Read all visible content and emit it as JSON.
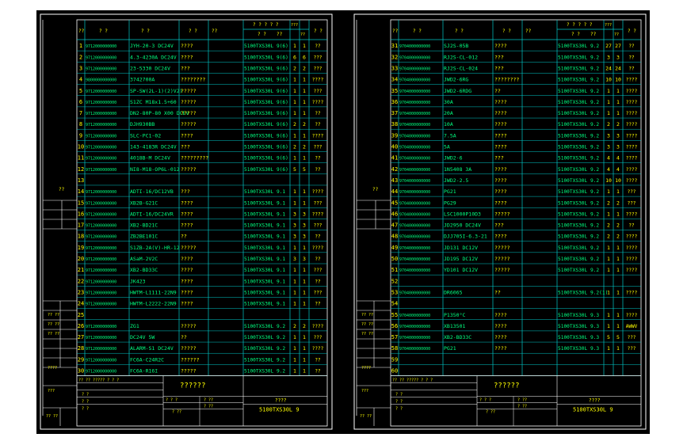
{
  "colors": {
    "frame": "#ffffff",
    "grid": "#00c8c8",
    "text": "#ffff00",
    "code": "#00ff80",
    "background": "#000000"
  },
  "sheets": [
    {
      "header": {
        "no": "??",
        "code": "? ?",
        "name": "? ?",
        "c3": "? ?",
        "c4": "??",
        "ref_top": "? ? ? ? ?",
        "ref_sub": "? ?",
        "ref_sub2": "??",
        "q1": "???",
        "q2": "??",
        "rem": "? ?"
      },
      "rows": [
        {
          "no": "1",
          "code": "9712000000000",
          "name": "JYH-20-3 DC24V",
          "c3": "????",
          "ref": "5100TXS30L 9(6)",
          "q1": "1",
          "q2": "1",
          "rem": "??"
        },
        {
          "no": "2",
          "code": "9712000000000",
          "name": "4.3-4230A DC24V",
          "c3": "????",
          "ref": "5100TXS30L 9(6)",
          "q1": "6",
          "q2": "6",
          "rem": "???"
        },
        {
          "no": "3",
          "code": "9712000000000",
          "name": "23-5330 DC24V",
          "c3": "???",
          "ref": "5100TXS30L 9(6)",
          "q1": "2",
          "q2": "2",
          "rem": "???"
        },
        {
          "no": "4",
          "code": "9800000000000",
          "name": "3742700A",
          "c3": "????????",
          "ref": "5100TXS30L 9(6)",
          "q1": "1",
          "q2": "1",
          "rem": "????"
        },
        {
          "no": "5",
          "code": "9712000000000",
          "name": "SP-SW(2L-1)(2)V2)",
          "c3": "?????",
          "ref": "5100TXS30L 9(6)",
          "q1": "1",
          "q2": "1",
          "rem": "???"
        },
        {
          "no": "6",
          "code": "9712000000000",
          "name": "S1ZC M18x1.5+60",
          "c3": "?????",
          "ref": "5100TXS30L 9(6)",
          "q1": "1",
          "q2": "1",
          "rem": "????"
        },
        {
          "no": "7",
          "code": "9712000000000",
          "name": "DN2-80P-80 X00 DCEV",
          "c3": "?????",
          "ref": "5100TXS30L 9(6)",
          "q1": "1",
          "q2": "1",
          "rem": "??"
        },
        {
          "no": "8",
          "code": "9712000000000",
          "name": "DJH930BB",
          "c3": "?????",
          "ref": "5100TXS30L 9(6)",
          "q1": "2",
          "q2": "2",
          "rem": "??"
        },
        {
          "no": "9",
          "code": "9712000000000",
          "name": "SLC-PC1-02",
          "c3": "????",
          "ref": "5100TXS30L 9(6)",
          "q1": "1",
          "q2": "1",
          "rem": "????"
        },
        {
          "no": "10",
          "code": "9712000000000",
          "name": "143-4183R DC24V",
          "c3": "???",
          "ref": "5100TXS30L 9(6)",
          "q1": "2",
          "q2": "2",
          "rem": "???"
        },
        {
          "no": "11",
          "code": "9712000000000",
          "name": "4018B-M DC24V",
          "c3": "?????????",
          "ref": "5100TXS30L 9(6)",
          "q1": "1",
          "q2": "1",
          "rem": "??"
        },
        {
          "no": "12",
          "code": "9712000000000",
          "name": "NI8-M18-OP6L-012",
          "c3": "?????",
          "ref": "5100TXS30L 9(6)",
          "q1": "5",
          "q2": "5",
          "rem": "??"
        },
        {
          "no": "13",
          "code": "",
          "name": "",
          "c3": "",
          "ref": "",
          "q1": "",
          "q2": "",
          "rem": ""
        },
        {
          "no": "14",
          "code": "9712000000000",
          "name": "ADTI-16/DC12VB",
          "c3": "???",
          "ref": "5100TXS30L 9.1",
          "q1": "1",
          "q2": "1",
          "rem": "????"
        },
        {
          "no": "15",
          "code": "9712000000000",
          "name": "XB2B-G21C",
          "c3": "????",
          "ref": "5100TXS30L 9.1",
          "q1": "1",
          "q2": "1",
          "rem": "???"
        },
        {
          "no": "16",
          "code": "9712000000000",
          "name": "ADTI-16/DC24VR",
          "c3": "????",
          "ref": "5100TXS30L 9.1",
          "q1": "3",
          "q2": "3",
          "rem": "????"
        },
        {
          "no": "17",
          "code": "9712000000000",
          "name": "XB2-BD21C",
          "c3": "????",
          "ref": "5100TXS30L 9.1",
          "q1": "3",
          "q2": "3",
          "rem": "???"
        },
        {
          "no": "18",
          "code": "9712000000000",
          "name": "ZB2BE101C",
          "c3": "??",
          "ref": "5100TXS30L 9.1",
          "q1": "3",
          "q2": "3",
          "rem": "??"
        },
        {
          "no": "19",
          "code": "9712000000000",
          "name": "S1ZB-2A(V)-HR-12",
          "c3": "?????",
          "ref": "5100TXS30L 9.1",
          "q1": "1",
          "q2": "1",
          "rem": "????"
        },
        {
          "no": "20",
          "code": "9712000000000",
          "name": "ASaM-2V2C",
          "c3": "????",
          "ref": "5100TXS30L 9.1",
          "q1": "3",
          "q2": "3",
          "rem": "??"
        },
        {
          "no": "21",
          "code": "9712000000000",
          "name": "XB2-BD33C",
          "c3": "????",
          "ref": "5100TXS30L 9.1",
          "q1": "1",
          "q2": "1",
          "rem": "???"
        },
        {
          "no": "22",
          "code": "9712000000000",
          "name": "JK423",
          "c3": "????",
          "ref": "5100TXS30L 9.1",
          "q1": "1",
          "q2": "1",
          "rem": "??"
        },
        {
          "no": "23",
          "code": "9712000000000",
          "name": "HWTM-L1111-22N9",
          "c3": "????",
          "ref": "5100TXS30L 9.1",
          "q1": "1",
          "q2": "1",
          "rem": "???"
        },
        {
          "no": "24",
          "code": "9712000000000",
          "name": "HWTM-L2222-22N9",
          "c3": "????",
          "ref": "5100TXS30L 9.1",
          "q1": "1",
          "q2": "1",
          "rem": "??"
        },
        {
          "no": "25",
          "code": "",
          "name": "",
          "c3": "",
          "ref": "",
          "q1": "",
          "q2": "",
          "rem": ""
        },
        {
          "no": "26",
          "code": "9712000000000",
          "name": "ZG1",
          "c3": "?????",
          "ref": "5100TXS30L 9.2",
          "q1": "2",
          "q2": "2",
          "rem": "????"
        },
        {
          "no": "27",
          "code": "9712000000000",
          "name": "DC24V 5W",
          "c3": "??",
          "ref": "5100TXS30L 9.2",
          "q1": "1",
          "q2": "1",
          "rem": "???"
        },
        {
          "no": "28",
          "code": "9712000000000",
          "name": "ALARM-S1 DC24V",
          "c3": "?????",
          "ref": "5100TXS30L 9.2",
          "q1": "1",
          "q2": "1",
          "rem": "????"
        },
        {
          "no": "29",
          "code": "9712000000000",
          "name": "FC6A-C24R2C",
          "c3": "??????",
          "ref": "5100TXS30L 9.2",
          "q1": "1",
          "q2": "1",
          "rem": "??"
        },
        {
          "no": "30",
          "code": "9712000000000",
          "name": "FC6A-R16I",
          "c3": "?????",
          "ref": "5100TXS30L 9.2",
          "q1": "1",
          "q2": "1",
          "rem": "??"
        }
      ],
      "left_strip": {
        "s1": "??",
        "s2": "?? ??",
        "s3": "?? ??",
        "s4": "?? ??",
        "s5": "????",
        "s6": "???",
        "s7": "?? ??"
      },
      "title_block": {
        "marks": "?? ?? ????? ? ? ?",
        "big": "??????",
        "small1": "? ?",
        "small2": "? ?",
        "small3": "? ?",
        "mid1": "? ? ?",
        "mid2": "? ??",
        "mid3": "? ??",
        "mid4": "? ??",
        "right": "????",
        "drawing_no": "5100TXS30L 9"
      }
    },
    {
      "header": {
        "no": "??",
        "code": "? ?",
        "name": "? ?",
        "c3": "? ?",
        "c4": "??",
        "ref_top": "? ? ? ? ?",
        "ref_sub": "? ?",
        "ref_sub2": "??",
        "q1": "???",
        "q2": "??",
        "rem": "? ?"
      },
      "rows": [
        {
          "no": "31",
          "code": "9704000000000",
          "name": "SJ2S-05B",
          "c3": "????",
          "ref": "5100TXS30L 9.2",
          "q1": "27",
          "q2": "27",
          "rem": "??"
        },
        {
          "no": "32",
          "code": "9704000000000",
          "name": "RJ2S-CL-012",
          "c3": "???",
          "ref": "5100TXS30L 9.2",
          "q1": "3",
          "q2": "3",
          "rem": "??"
        },
        {
          "no": "33",
          "code": "9704000000000",
          "name": "RJ2S-CL-024",
          "c3": "???",
          "ref": "5100TXS30L 9.2",
          "q1": "24",
          "q2": "24",
          "rem": "??"
        },
        {
          "no": "34",
          "code": "9704000000000",
          "name": "JWD2-6RG",
          "c3": "????????",
          "ref": "5100TXS30L 9.2",
          "q1": "10",
          "q2": "10",
          "rem": "????"
        },
        {
          "no": "35",
          "code": "9704000000000",
          "name": "JWD2-6RDG",
          "c3": "??",
          "ref": "5100TXS30L 9.2",
          "q1": "1",
          "q2": "1",
          "rem": "????"
        },
        {
          "no": "36",
          "code": "9704000000000",
          "name": "30A",
          "c3": "????",
          "ref": "5100TXS30L 9.2",
          "q1": "1",
          "q2": "1",
          "rem": "????"
        },
        {
          "no": "37",
          "code": "9704000000000",
          "name": "20A",
          "c3": "????",
          "ref": "5100TXS30L 9.2",
          "q1": "1",
          "q2": "1",
          "rem": "????"
        },
        {
          "no": "38",
          "code": "9704000000000",
          "name": "10A",
          "c3": "????",
          "ref": "5100TXS30L 9.2",
          "q1": "2",
          "q2": "2",
          "rem": "????"
        },
        {
          "no": "39",
          "code": "9704000000000",
          "name": "7.5A",
          "c3": "????",
          "ref": "5100TXS30L 9.2",
          "q1": "3",
          "q2": "3",
          "rem": "????"
        },
        {
          "no": "40",
          "code": "9704000000000",
          "name": "5A",
          "c3": "????",
          "ref": "5100TXS30L 9.2",
          "q1": "3",
          "q2": "3",
          "rem": "????"
        },
        {
          "no": "41",
          "code": "9704000000000",
          "name": "JWD2-6",
          "c3": "???",
          "ref": "5100TXS30L 9.2",
          "q1": "4",
          "q2": "4",
          "rem": "????"
        },
        {
          "no": "42",
          "code": "9704000000000",
          "name": "1N5408 3A",
          "c3": "????",
          "ref": "5100TXS30L 9.2",
          "q1": "4",
          "q2": "4",
          "rem": "????"
        },
        {
          "no": "43",
          "code": "9704000000000",
          "name": "JWD2-2.5",
          "c3": "????",
          "ref": "5100TXS30L 9.2",
          "q1": "10",
          "q2": "10",
          "rem": "????"
        },
        {
          "no": "44",
          "code": "9704000000000",
          "name": "PG21",
          "c3": "????",
          "ref": "5100TXS30L 9.2",
          "q1": "1",
          "q2": "1",
          "rem": "???"
        },
        {
          "no": "45",
          "code": "9704000000000",
          "name": "PG29",
          "c3": "????",
          "ref": "5100TXS30L 9.2",
          "q1": "2",
          "q2": "2",
          "rem": "???"
        },
        {
          "no": "46",
          "code": "9704000000000",
          "name": "LSC1000P10D3",
          "c3": "?????",
          "ref": "5100TXS30L 9.2",
          "q1": "1",
          "q2": "1",
          "rem": "????"
        },
        {
          "no": "47",
          "code": "9704000000000",
          "name": "JD2950 DC24V",
          "c3": "???",
          "ref": "5100TXS30L 9.2",
          "q1": "2",
          "q2": "2",
          "rem": "??"
        },
        {
          "no": "48",
          "code": "9704000000000",
          "name": "DJJ705I-6.3-21",
          "c3": "????",
          "ref": "5100TXS30L 9.2",
          "q1": "2",
          "q2": "2",
          "rem": "????"
        },
        {
          "no": "49",
          "code": "9704000000000",
          "name": "JD131 DC12V",
          "c3": "?????",
          "ref": "5100TXS30L 9.2",
          "q1": "1",
          "q2": "1",
          "rem": "????"
        },
        {
          "no": "50",
          "code": "9704000000000",
          "name": "JD195 DC12V",
          "c3": "?????",
          "ref": "5100TXS30L 9.2",
          "q1": "1",
          "q2": "1",
          "rem": "????"
        },
        {
          "no": "51",
          "code": "9704000000000",
          "name": "YD101 DC12V",
          "c3": "?????",
          "ref": "5100TXS30L 9.2",
          "q1": "1",
          "q2": "1",
          "rem": "????"
        },
        {
          "no": "52",
          "code": "",
          "name": "",
          "c3": "",
          "ref": "",
          "q1": "",
          "q2": "",
          "rem": ""
        },
        {
          "no": "53",
          "code": "9704000000000",
          "name": "DR6065",
          "c3": "??",
          "ref": "5100TXS30L 9.2(1)",
          "q1": "1",
          "q2": "1",
          "rem": "????"
        },
        {
          "no": "54",
          "code": "",
          "name": "",
          "c3": "",
          "ref": "",
          "q1": "",
          "q2": "",
          "rem": ""
        },
        {
          "no": "55",
          "code": "9704000000000",
          "name": "P1350°C",
          "c3": "????",
          "ref": "5100TXS30L 9.3",
          "q1": "1",
          "q2": "1",
          "rem": "????"
        },
        {
          "no": "56",
          "code": "9704000000000",
          "name": "XB13501",
          "c3": "????",
          "ref": "5100TXS30L 9.3",
          "q1": "1",
          "q2": "1",
          "rem": "AWWV"
        },
        {
          "no": "57",
          "code": "9704000000000",
          "name": "XB2-BD33C",
          "c3": "????",
          "ref": "5100TXS30L 9.3",
          "q1": "5",
          "q2": "5",
          "rem": "???"
        },
        {
          "no": "58",
          "code": "9704000000000",
          "name": "PG21",
          "c3": "????",
          "ref": "5100TXS30L 9.3",
          "q1": "1",
          "q2": "1",
          "rem": "???"
        },
        {
          "no": "59",
          "code": "",
          "name": "",
          "c3": "",
          "ref": "",
          "q1": "",
          "q2": "",
          "rem": ""
        },
        {
          "no": "60",
          "code": "",
          "name": "",
          "c3": "",
          "ref": "",
          "q1": "",
          "q2": "",
          "rem": ""
        }
      ],
      "left_strip": {
        "s1": "??",
        "s2": "?? ??",
        "s3": "?? ??",
        "s4": "?? ??",
        "s5": "????",
        "s6": "???",
        "s7": "?? ??"
      },
      "title_block": {
        "marks": "?? ?? ????? ? ? ?",
        "big": "??????",
        "small1": "? ?",
        "small2": "? ?",
        "small3": "? ?",
        "mid1": "? ? ?",
        "mid2": "? ??",
        "mid3": "? ??",
        "mid4": "? ??",
        "right": "????",
        "drawing_no": "5100TXS30L 9"
      }
    }
  ]
}
